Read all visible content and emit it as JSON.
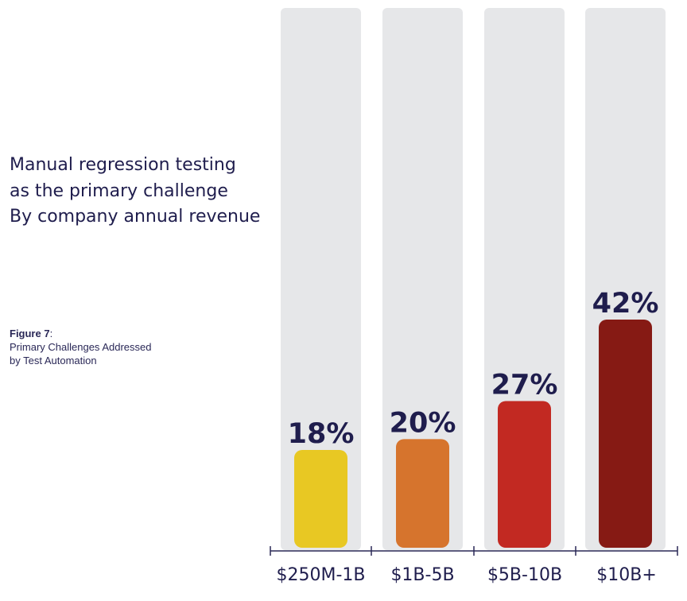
{
  "title_lines": [
    "Manual regression testing",
    "as the primary challenge",
    "By company annual revenue"
  ],
  "figure": {
    "label": "Figure 7",
    "label_suffix": ":",
    "caption_lines": [
      "Primary Challenges Addressed",
      "by Test Automation"
    ]
  },
  "chart_data": {
    "type": "bar",
    "categories": [
      "$250M-1B",
      "$1B-5B",
      "$5B-10B",
      "$10B+"
    ],
    "values": [
      18,
      20,
      27,
      42
    ],
    "value_labels": [
      "18%",
      "20%",
      "27%",
      "42%"
    ],
    "colors": [
      "#e8c823",
      "#d6742d",
      "#c22922",
      "#861a14"
    ],
    "track_color": "#e6e7e9",
    "label_color": "#1f1d4d",
    "ylim": [
      0,
      100
    ],
    "grid": false
  }
}
